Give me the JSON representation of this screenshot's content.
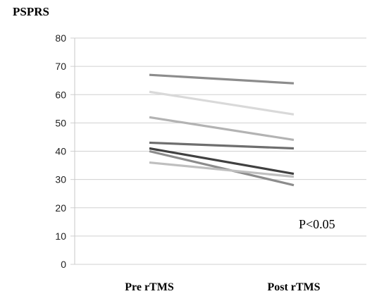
{
  "chart_data": {
    "type": "line",
    "ylabel": "PSPRS",
    "categories": [
      "Pre rTMS",
      "Post rTMS"
    ],
    "ylim": [
      0,
      80
    ],
    "yticks": [
      0,
      10,
      20,
      30,
      40,
      50,
      60,
      70,
      80
    ],
    "grid": true,
    "annotation": "P<0.05",
    "series": [
      {
        "values": [
          67,
          64
        ],
        "color": "#8c8c8c"
      },
      {
        "values": [
          61,
          53
        ],
        "color": "#d9d9d9"
      },
      {
        "values": [
          52,
          44
        ],
        "color": "#b3b3b3"
      },
      {
        "values": [
          43,
          41
        ],
        "color": "#6e6e6e"
      },
      {
        "values": [
          41,
          32
        ],
        "color": "#404040"
      },
      {
        "values": [
          40,
          28
        ],
        "color": "#8c8c8c"
      },
      {
        "values": [
          36,
          31
        ],
        "color": "#bfbfbf"
      }
    ]
  }
}
